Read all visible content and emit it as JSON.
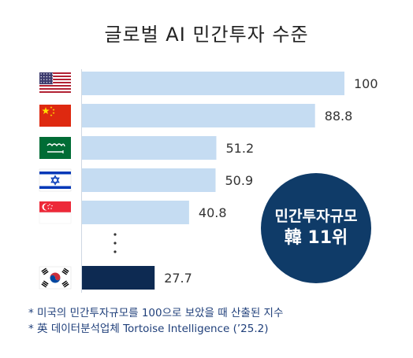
{
  "chart_data": {
    "type": "bar",
    "orientation": "horizontal",
    "title": "글로벌 AI 민간투자 수준",
    "categories": [
      "United States",
      "China",
      "Saudi Arabia",
      "Israel",
      "Singapore",
      "South Korea"
    ],
    "flag_icons": [
      "us-flag-icon",
      "china-flag-icon",
      "saudi-arabia-flag-icon",
      "israel-flag-icon",
      "singapore-flag-icon",
      "south-korea-flag-icon"
    ],
    "values": [
      100,
      88.8,
      51.2,
      50.9,
      40.8,
      27.7
    ],
    "value_labels": [
      "100",
      "88.8",
      "51.2",
      "50.9",
      "40.8",
      "27.7"
    ],
    "xlim": [
      0,
      100
    ],
    "grid": false,
    "bar_color": "#c5dcf2",
    "highlight_color": "#0d2a52",
    "highlight_index": 5,
    "ellipsis_between": [
      4,
      5
    ]
  },
  "badge": {
    "line1": "민간투자규모",
    "line2": "韓 11위",
    "color": "#0f3b68"
  },
  "notes": [
    "* 미국의 민간투자규모를 100으로 보았을 때 산출된 지수",
    "* 英 데이터분석업체 Tortoise Intelligence (’25.2)"
  ]
}
